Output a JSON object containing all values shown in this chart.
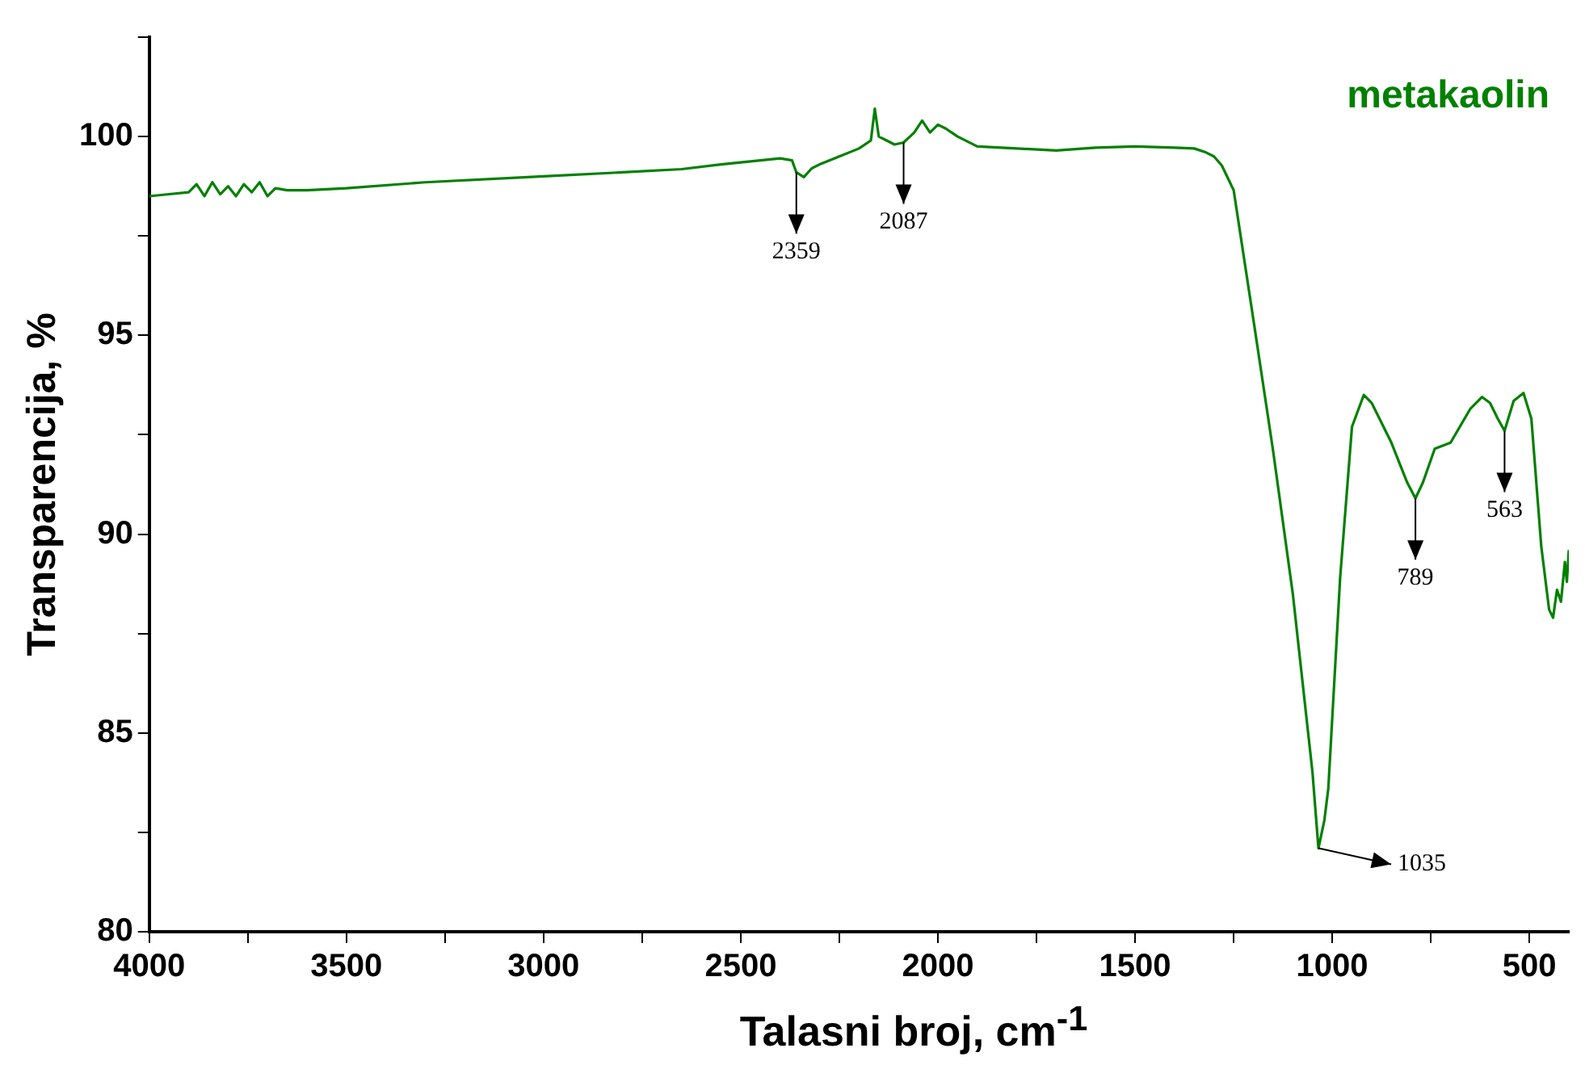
{
  "chart_data": {
    "type": "line",
    "title": "metakaolin",
    "xlabel": "Talasni broj, cm$^{-1}$",
    "ylabel": "Transparencija, %",
    "x": [
      4000,
      3950,
      3900,
      3880,
      3860,
      3840,
      3820,
      3800,
      3780,
      3760,
      3740,
      3720,
      3700,
      3680,
      3650,
      3600,
      3500,
      3300,
      3000,
      2800,
      2650,
      2550,
      2450,
      2400,
      2370,
      2359,
      2340,
      2320,
      2300,
      2250,
      2200,
      2170,
      2160,
      2150,
      2130,
      2110,
      2087,
      2060,
      2040,
      2020,
      2000,
      1980,
      1950,
      1900,
      1800,
      1700,
      1600,
      1500,
      1400,
      1350,
      1320,
      1300,
      1280,
      1250,
      1200,
      1150,
      1100,
      1050,
      1035,
      1020,
      1010,
      980,
      950,
      920,
      900,
      880,
      850,
      810,
      789,
      770,
      740,
      700,
      650,
      620,
      600,
      580,
      563,
      540,
      515,
      495,
      470,
      450,
      440,
      430,
      420,
      410,
      405,
      400
    ],
    "series": [
      {
        "color": "#008000",
        "values": [
          98.5,
          98.55,
          98.6,
          98.8,
          98.5,
          98.85,
          98.55,
          98.75,
          98.5,
          98.8,
          98.6,
          98.85,
          98.5,
          98.7,
          98.65,
          98.65,
          98.7,
          98.85,
          99.0,
          99.1,
          99.18,
          99.3,
          99.4,
          99.45,
          99.4,
          99.1,
          98.98,
          99.2,
          99.3,
          99.5,
          99.7,
          99.9,
          100.7,
          100.0,
          99.9,
          99.8,
          99.85,
          100.1,
          100.4,
          100.1,
          100.3,
          100.2,
          100.0,
          99.75,
          99.7,
          99.65,
          99.72,
          99.75,
          99.72,
          99.7,
          99.6,
          99.5,
          99.27,
          98.65,
          95.4,
          92.1,
          88.5,
          84.0,
          82.1,
          82.8,
          83.6,
          88.9,
          92.7,
          93.5,
          93.3,
          92.9,
          92.3,
          91.3,
          90.9,
          91.3,
          92.15,
          92.3,
          93.15,
          93.45,
          93.3,
          92.9,
          92.6,
          93.35,
          93.55,
          92.9,
          89.7,
          88.1,
          87.9,
          88.6,
          88.3,
          89.3,
          88.8,
          89.6
        ]
      }
    ],
    "xlim": [
      4000,
      400
    ],
    "xticks": [
      4000,
      {
        "value": 3750,
        "label": null
      },
      3500,
      {
        "value": 3250,
        "label": null
      },
      3000,
      {
        "value": 2750,
        "label": null
      },
      2500,
      {
        "value": 2250,
        "label": null
      },
      2000,
      {
        "value": 1750,
        "label": null
      },
      1500,
      {
        "value": 1250,
        "label": null
      },
      1000,
      {
        "value": 750,
        "label": null
      },
      500
    ],
    "ylim": [
      80,
      102.5
    ],
    "yticks": [
      80,
      {
        "value": 82.5,
        "label": null
      },
      85,
      {
        "value": 87.5,
        "label": null
      },
      90,
      {
        "value": 92.5,
        "label": null
      },
      95,
      {
        "value": 97.5,
        "label": null
      },
      100,
      {
        "value": 102.5,
        "label": null
      }
    ],
    "grid": false,
    "legend": false,
    "marker": "none",
    "line_style": "solid",
    "annotations": [
      {
        "text": "2359",
        "x": 2359,
        "y": 99.1
      },
      {
        "text": "2087",
        "x": 2087,
        "y": 99.85
      },
      {
        "text": "1035",
        "x": 1035,
        "y": 82.1
      },
      {
        "text": "789",
        "x": 789,
        "y": 90.9
      },
      {
        "text": "563",
        "x": 563,
        "y": 92.6
      }
    ]
  }
}
